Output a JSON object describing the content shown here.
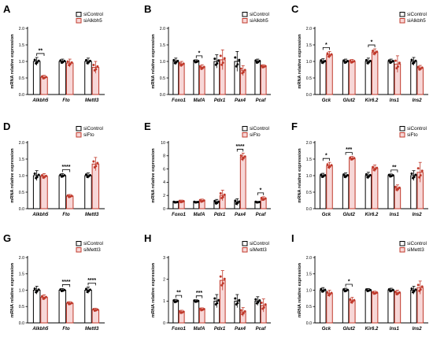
{
  "colors": {
    "control": "#000000",
    "treatment": "#c0392b",
    "treatment_fill": "#f7d7d7",
    "background": "#ffffff"
  },
  "chart_data": [
    {
      "panel": "A",
      "type": "bar",
      "ylabel": "mRNA relative expression",
      "ylim": [
        0,
        2.0
      ],
      "yticks": [
        0,
        0.5,
        1.0,
        1.5,
        2.0
      ],
      "legend": [
        "siControl",
        "siAlkbh5"
      ],
      "legend_position": "top-right",
      "categories": [
        "Alkbh5",
        "Fto",
        "Mettl3"
      ],
      "series": [
        {
          "name": "siControl",
          "values": [
            1.0,
            1.0,
            1.0
          ],
          "errors": [
            0.12,
            0.07,
            0.1
          ]
        },
        {
          "name": "siAlkbh5",
          "values": [
            0.52,
            0.95,
            0.82
          ],
          "errors": [
            0.06,
            0.12,
            0.18
          ]
        }
      ],
      "annotations": [
        {
          "category": "Alkbh5",
          "label": "**"
        }
      ]
    },
    {
      "panel": "B",
      "type": "bar",
      "ylabel": "mRNA relative expression",
      "ylim": [
        0,
        2.0
      ],
      "yticks": [
        0,
        0.5,
        1.0,
        1.5,
        2.0
      ],
      "legend": [
        "siControl",
        "siAlkbh5"
      ],
      "legend_position": "top-right",
      "categories": [
        "Foxo1",
        "MafA",
        "Pdx1",
        "Pax4",
        "Pcaf"
      ],
      "series": [
        {
          "name": "siControl",
          "values": [
            1.0,
            1.0,
            1.0,
            1.0,
            1.0
          ],
          "errors": [
            0.1,
            0.05,
            0.2,
            0.3,
            0.07
          ]
        },
        {
          "name": "siAlkbh5",
          "values": [
            0.92,
            0.82,
            1.05,
            0.72,
            0.85
          ],
          "errors": [
            0.08,
            0.08,
            0.3,
            0.15,
            0.05
          ]
        }
      ],
      "annotations": [
        {
          "category": "MafA",
          "label": "*"
        }
      ]
    },
    {
      "panel": "C",
      "type": "bar",
      "ylabel": "mRNA relative expression",
      "ylim": [
        0,
        2.0
      ],
      "yticks": [
        0,
        0.5,
        1.0,
        1.5,
        2.0
      ],
      "legend": [
        "siControl",
        "siAlkbh5"
      ],
      "legend_position": "top-right",
      "categories": [
        "Gck",
        "Glut2",
        "Kir6.2",
        "Ins1",
        "Ins2"
      ],
      "series": [
        {
          "name": "siControl",
          "values": [
            1.0,
            1.0,
            1.0,
            1.0,
            1.0
          ],
          "errors": [
            0.08,
            0.07,
            0.1,
            0.07,
            0.12
          ]
        },
        {
          "name": "siAlkbh5",
          "values": [
            1.2,
            1.0,
            1.28,
            0.92,
            0.8
          ],
          "errors": [
            0.1,
            0.06,
            0.1,
            0.25,
            0.08
          ]
        }
      ],
      "annotations": [
        {
          "category": "Gck",
          "label": "*"
        },
        {
          "category": "Kir6.2",
          "label": "*"
        }
      ]
    },
    {
      "panel": "D",
      "type": "bar",
      "ylabel": "mRNA relative expression",
      "ylim": [
        0,
        2.0
      ],
      "yticks": [
        0,
        0.5,
        1.0,
        1.5,
        2.0
      ],
      "legend": [
        "siControl",
        "siFto"
      ],
      "legend_position": "top-right",
      "categories": [
        "Alkbh5",
        "Fto",
        "Mettl3"
      ],
      "series": [
        {
          "name": "siControl",
          "values": [
            1.0,
            1.0,
            1.0
          ],
          "errors": [
            0.15,
            0.06,
            0.08
          ]
        },
        {
          "name": "siFto",
          "values": [
            0.98,
            0.38,
            1.35
          ],
          "errors": [
            0.08,
            0.05,
            0.2
          ]
        }
      ],
      "annotations": [
        {
          "category": "Fto",
          "label": "****"
        }
      ]
    },
    {
      "panel": "E",
      "type": "bar",
      "ylabel": "mRNA relative expression",
      "ylim": [
        0,
        10
      ],
      "yticks": [
        0,
        2,
        4,
        6,
        8,
        10
      ],
      "legend": [
        "siControl",
        "siFto"
      ],
      "legend_position": "top-right",
      "categories": [
        "Foxo1",
        "MafA",
        "Pdx1",
        "Pax4",
        "Pcaf"
      ],
      "series": [
        {
          "name": "siControl",
          "values": [
            1.0,
            1.0,
            1.0,
            1.0,
            1.0
          ],
          "errors": [
            0.1,
            0.1,
            0.4,
            0.5,
            0.1
          ]
        },
        {
          "name": "siFto",
          "values": [
            1.1,
            1.2,
            2.0,
            7.8,
            1.5
          ],
          "errors": [
            0.2,
            0.25,
            0.8,
            0.6,
            0.3
          ]
        }
      ],
      "annotations": [
        {
          "category": "Pax4",
          "label": "****"
        },
        {
          "category": "Pcaf",
          "label": "*"
        }
      ]
    },
    {
      "panel": "F",
      "type": "bar",
      "ylabel": "mRNA relative expression",
      "ylim": [
        0,
        2.0
      ],
      "yticks": [
        0,
        0.5,
        1.0,
        1.5,
        2.0
      ],
      "legend": [
        "siControl",
        "siFto"
      ],
      "legend_position": "top-right",
      "categories": [
        "Gck",
        "Glut2",
        "Kir6.2",
        "Ins1",
        "Ins2"
      ],
      "series": [
        {
          "name": "siControl",
          "values": [
            1.0,
            1.0,
            1.0,
            1.0,
            1.0
          ],
          "errors": [
            0.07,
            0.08,
            0.1,
            0.05,
            0.15
          ]
        },
        {
          "name": "siFto",
          "values": [
            1.3,
            1.52,
            1.22,
            0.62,
            1.1
          ],
          "errors": [
            0.1,
            0.06,
            0.1,
            0.1,
            0.3
          ]
        }
      ],
      "annotations": [
        {
          "category": "Gck",
          "label": "*"
        },
        {
          "category": "Glut2",
          "label": "***"
        },
        {
          "category": "Ins1",
          "label": "**"
        }
      ]
    },
    {
      "panel": "G",
      "type": "bar",
      "ylabel": "mRNA relative expression",
      "ylim": [
        0,
        2.0
      ],
      "yticks": [
        0,
        0.5,
        1.0,
        1.5,
        2.0
      ],
      "legend": [
        "siControl",
        "siMettl3"
      ],
      "legend_position": "top-right",
      "categories": [
        "Alkbh5",
        "Fto",
        "Mettl3"
      ],
      "series": [
        {
          "name": "siControl",
          "values": [
            1.0,
            1.0,
            1.0
          ],
          "errors": [
            0.12,
            0.05,
            0.1
          ]
        },
        {
          "name": "siMettl3",
          "values": [
            0.78,
            0.6,
            0.4
          ],
          "errors": [
            0.08,
            0.05,
            0.05
          ]
        }
      ],
      "annotations": [
        {
          "category": "Fto",
          "label": "****"
        },
        {
          "category": "Mettl3",
          "label": "****"
        }
      ]
    },
    {
      "panel": "H",
      "type": "bar",
      "ylabel": "mRNA relative expression",
      "ylim": [
        0,
        3
      ],
      "yticks": [
        0,
        1,
        2,
        3
      ],
      "legend": [
        "siControl",
        "siMettl3"
      ],
      "legend_position": "top-right",
      "categories": [
        "Foxo1",
        "MafA",
        "Pdx1",
        "Pax4",
        "Pcaf"
      ],
      "series": [
        {
          "name": "siControl",
          "values": [
            1.0,
            1.0,
            1.0,
            1.0,
            1.0
          ],
          "errors": [
            0.08,
            0.06,
            0.3,
            0.3,
            0.2
          ]
        },
        {
          "name": "siMettl3",
          "values": [
            0.5,
            0.62,
            1.95,
            0.5,
            0.8
          ],
          "errors": [
            0.08,
            0.07,
            0.45,
            0.2,
            0.3
          ]
        }
      ],
      "annotations": [
        {
          "category": "Foxo1",
          "label": "**"
        },
        {
          "category": "MafA",
          "label": "***"
        }
      ]
    },
    {
      "panel": "I",
      "type": "bar",
      "ylabel": "mRNA relative expression",
      "ylim": [
        0,
        2.0
      ],
      "yticks": [
        0,
        0.5,
        1.0,
        1.5,
        2.0
      ],
      "legend": [
        "siControl",
        "siMettl3"
      ],
      "legend_position": "top-right",
      "categories": [
        "Gck",
        "Glut2",
        "Kir6.2",
        "Ins1",
        "Ins2"
      ],
      "series": [
        {
          "name": "siControl",
          "values": [
            1.0,
            1.0,
            1.0,
            1.0,
            1.0
          ],
          "errors": [
            0.08,
            0.06,
            0.05,
            0.06,
            0.12
          ]
        },
        {
          "name": "siMettl3",
          "values": [
            0.9,
            0.68,
            0.92,
            0.92,
            1.08
          ],
          "errors": [
            0.1,
            0.1,
            0.05,
            0.08,
            0.2
          ]
        }
      ],
      "annotations": [
        {
          "category": "Glut2",
          "label": "*"
        }
      ]
    }
  ]
}
